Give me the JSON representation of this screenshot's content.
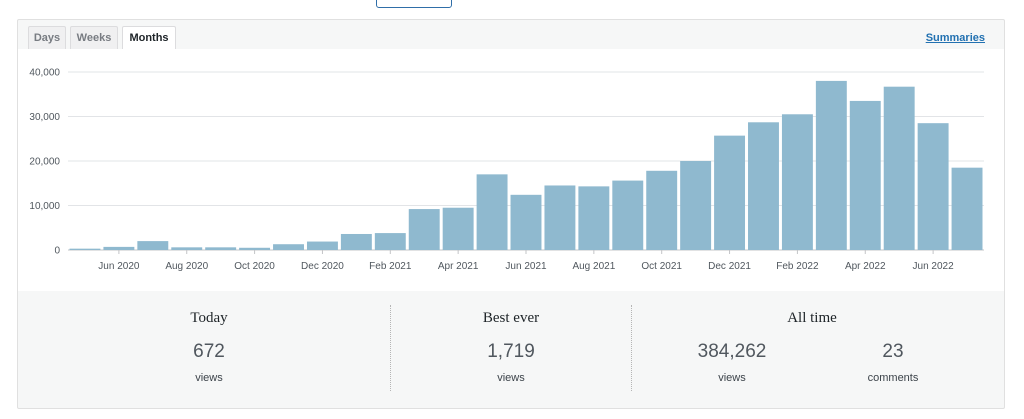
{
  "tabs": [
    {
      "label": "Days",
      "active": false
    },
    {
      "label": "Weeks",
      "active": false
    },
    {
      "label": "Months",
      "active": true
    }
  ],
  "summaries_link": "Summaries",
  "bar_color": "#8fb9cf",
  "chart_data": {
    "type": "bar",
    "categories": [
      "May 2020",
      "Jun 2020",
      "Jul 2020",
      "Aug 2020",
      "Sep 2020",
      "Oct 2020",
      "Nov 2020",
      "Dec 2020",
      "Jan 2021",
      "Feb 2021",
      "Mar 2021",
      "Apr 2021",
      "May 2021",
      "Jun 2021",
      "Jul 2021",
      "Aug 2021",
      "Sep 2021",
      "Oct 2021",
      "Nov 2021",
      "Dec 2021",
      "Jan 2022",
      "Feb 2022",
      "Mar 2022",
      "Apr 2022",
      "May 2022",
      "Jun 2022",
      "Jul 2022"
    ],
    "values": [
      300,
      700,
      2000,
      600,
      600,
      500,
      1300,
      1900,
      3600,
      3800,
      9200,
      9500,
      17000,
      12400,
      14500,
      14300,
      15600,
      17800,
      20000,
      25700,
      28700,
      30500,
      38000,
      33500,
      36700,
      28500,
      18500
    ],
    "tick_labels": [
      "Jun 2020",
      "Aug 2020",
      "Oct 2020",
      "Dec 2020",
      "Feb 2021",
      "Apr 2021",
      "Jun 2021",
      "Aug 2021",
      "Oct 2021",
      "Dec 2021",
      "Feb 2022",
      "Apr 2022",
      "Jun 2022"
    ],
    "y_ticks": [
      0,
      10000,
      20000,
      30000,
      40000
    ],
    "y_tick_labels": [
      "0",
      "10,000",
      "20,000",
      "30,000",
      "40,000"
    ],
    "ylim": [
      0,
      40000
    ],
    "grid": true
  },
  "stats": {
    "today": {
      "title": "Today",
      "value": "672",
      "label": "views"
    },
    "best": {
      "title": "Best ever",
      "value": "1,719",
      "label": "views"
    },
    "all_time": {
      "title": "All time",
      "views_value": "384,262",
      "views_label": "views",
      "comments_value": "23",
      "comments_label": "comments"
    }
  }
}
